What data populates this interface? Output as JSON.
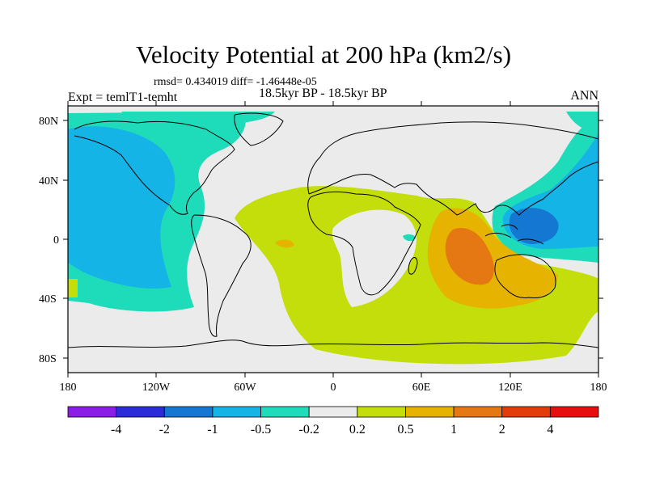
{
  "title": "Velocity Potential at 200 hPa (km2/s)",
  "stats": "rmsd= 0.434019 diff= -1.46448e-05",
  "subtitle": "18.5kyr BP - 18.5kyr BP",
  "left_label": "Expt = temlT1-temht",
  "right_label": "ANN",
  "axes": {
    "lat_ticks": [
      "80N",
      "40N",
      "0",
      "40S",
      "80S"
    ],
    "lon_ticks": [
      "180",
      "120W",
      "60W",
      "0",
      "60E",
      "120E",
      "180"
    ]
  },
  "colorbar": {
    "labels": [
      "-4",
      "-2",
      "-1",
      "-0.5",
      "-0.2",
      "0.2",
      "0.5",
      "1",
      "2",
      "4"
    ],
    "colors": [
      "#8a1ee6",
      "#2b2bd9",
      "#1478d2",
      "#14b4e6",
      "#1edcb9",
      "#ebebeb",
      "#c3de0a",
      "#e6b400",
      "#e67814",
      "#e13c0a",
      "#e60f0f"
    ]
  },
  "palette": {
    "background": "#ebebeb",
    "ocean_land_outline": "#000000"
  }
}
